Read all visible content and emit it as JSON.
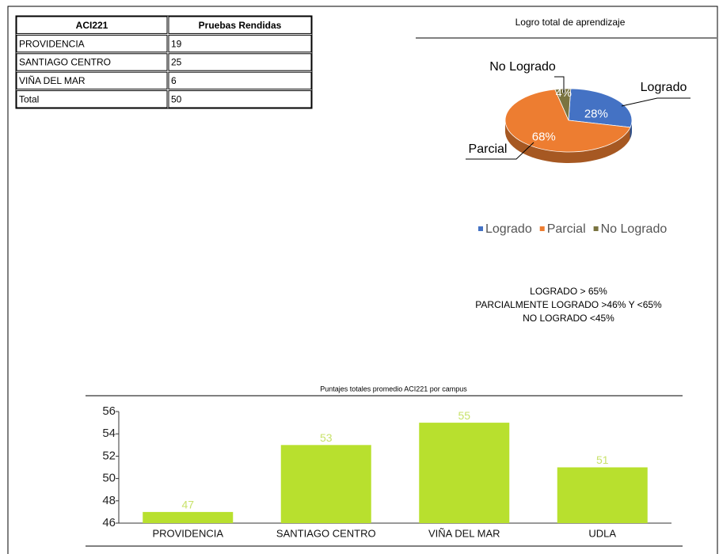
{
  "table": {
    "columns": [
      "ACI221",
      "Pruebas Rendidas"
    ],
    "rows": [
      [
        "PROVIDENCIA",
        "19"
      ],
      [
        "SANTIAGO CENTRO",
        "25"
      ],
      [
        "VIÑA DEL MAR",
        "6"
      ],
      [
        "Total",
        "50"
      ]
    ]
  },
  "chart_data": [
    {
      "type": "pie",
      "title": "Logro total de aprendizaje",
      "categories": [
        "Logrado",
        "Parcial",
        "No Logrado"
      ],
      "values": [
        28,
        68,
        4
      ],
      "value_labels": [
        "28%",
        "68%",
        "4%"
      ],
      "colors": [
        "#4472c4",
        "#ed7d31",
        "#7a7440"
      ],
      "legend": "bottom"
    },
    {
      "type": "bar",
      "title": "Puntajes totales promedio ACI221 por campus",
      "categories": [
        "PROVIDENCIA",
        "SANTIAGO CENTRO",
        "VIÑA DEL MAR",
        "UDLA"
      ],
      "values": [
        47,
        53,
        55,
        51
      ],
      "color": "#b8e02e",
      "ylim": [
        46,
        56
      ],
      "yticks": [
        46,
        48,
        50,
        52,
        54,
        56
      ]
    }
  ],
  "notes": [
    "LOGRADO > 65%",
    "PARCIALMENTE LOGRADO >46% Y <65%",
    "NO LOGRADO <45%"
  ]
}
